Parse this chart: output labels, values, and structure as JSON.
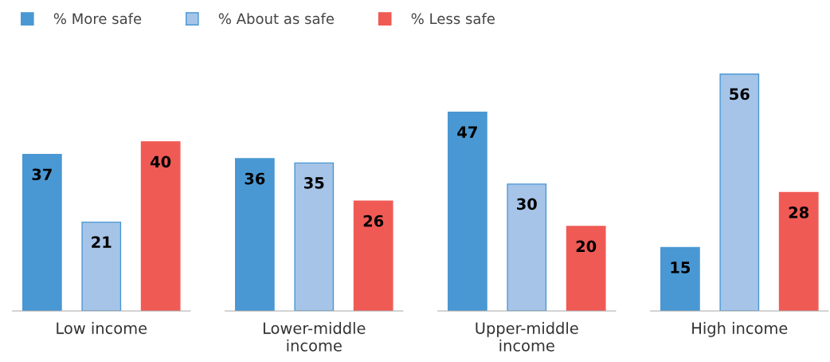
{
  "chart_data": {
    "type": "bar",
    "categories": [
      "Low income",
      "Lower-middle income",
      "Upper-middle income",
      "High income"
    ],
    "series": [
      {
        "name": "% More safe",
        "color": "#4a98d3",
        "values": [
          37,
          36,
          47,
          15
        ]
      },
      {
        "name": "% About as safe",
        "color": "#a6c4e8",
        "values": [
          21,
          35,
          30,
          56
        ]
      },
      {
        "name": "% Less safe",
        "color": "#f05a55",
        "values": [
          40,
          26,
          20,
          28
        ]
      }
    ],
    "data_labels": true,
    "legend": "top left"
  }
}
